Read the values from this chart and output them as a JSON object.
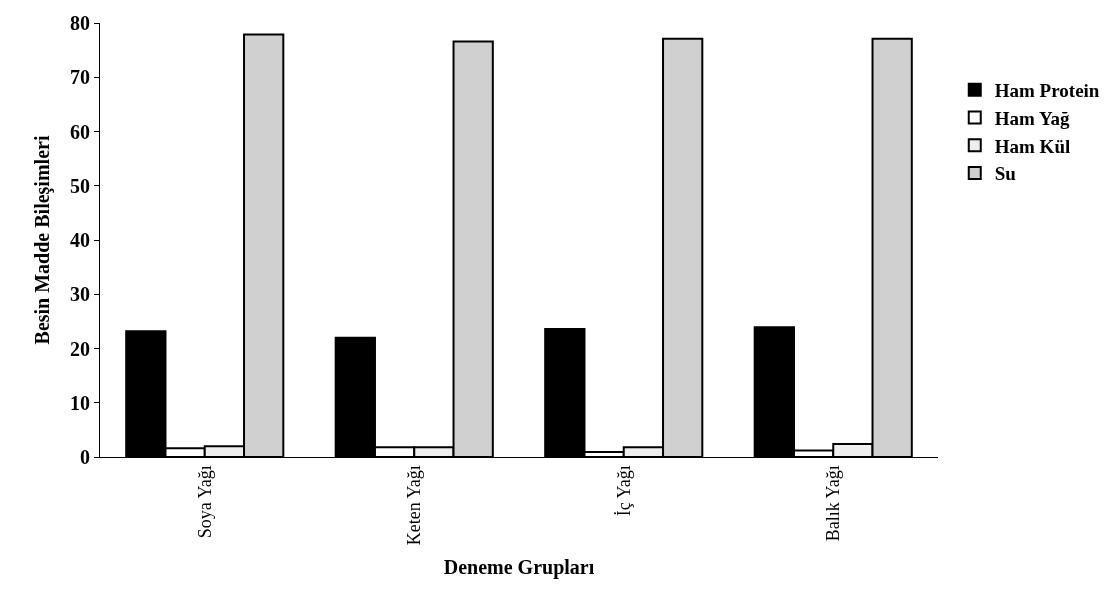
{
  "chart_data": {
    "type": "bar",
    "xlabel": "Deneme Grupları",
    "ylabel": "Besin Madde Bileşimleri",
    "categories": [
      "Soya Yağı",
      "Keten Yağı",
      "İç Yağı",
      "Balık Yağı"
    ],
    "series": [
      {
        "name": "Ham Protein",
        "color": "#000000",
        "values": [
          23.2,
          22.0,
          23.6,
          23.9
        ]
      },
      {
        "name": "Ham Yağ",
        "color": "#ffffff",
        "values": [
          1.6,
          1.8,
          0.9,
          1.2
        ]
      },
      {
        "name": "Ham Kül",
        "color": "#eeeeee",
        "values": [
          2.0,
          1.8,
          1.8,
          2.4
        ]
      },
      {
        "name": "Su",
        "color": "#d0d0d0",
        "values": [
          77.9,
          76.6,
          77.1,
          77.1
        ]
      }
    ],
    "ylim": [
      0,
      80
    ],
    "yticks": [
      0,
      10,
      20,
      30,
      40,
      50,
      60,
      70,
      80
    ],
    "legend": "right"
  }
}
